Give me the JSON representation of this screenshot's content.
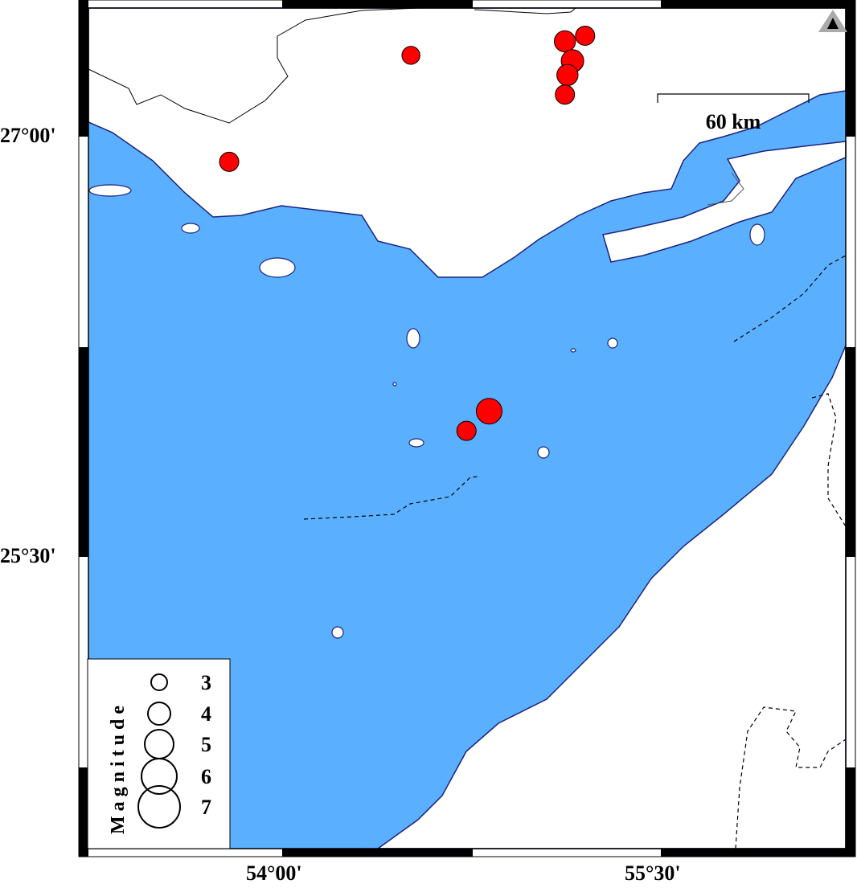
{
  "map": {
    "colors": {
      "sea": "#5ab0ff",
      "land": "#ffffff",
      "coast": "#1a237e",
      "event": "#ff0000"
    },
    "extent": {
      "lon": [
        53.2,
        56.25
      ],
      "lat": [
        24.4,
        27.48
      ]
    },
    "x_ticks": [
      {
        "lon": 54.0,
        "label": "54°00'"
      },
      {
        "lon": 55.5,
        "label": "55°30'"
      }
    ],
    "y_ticks": [
      {
        "lat": 27.0,
        "label": "27°00'"
      },
      {
        "lat": 25.5,
        "label": "25°30'"
      }
    ],
    "scale_bar": {
      "label": "60 km"
    },
    "north_marker_icon": "triangle-icon",
    "legend": {
      "title": "Magnitude",
      "entries": [
        3,
        4,
        5,
        6,
        7
      ],
      "labels": [
        "3",
        "4",
        "5",
        "6",
        "7"
      ]
    },
    "events": [
      {
        "lon": 54.51,
        "lat": 27.29,
        "mag": 3.3
      },
      {
        "lon": 53.79,
        "lat": 26.91,
        "mag": 3.5
      },
      {
        "lon": 55.12,
        "lat": 27.34,
        "mag": 3.8
      },
      {
        "lon": 55.2,
        "lat": 27.36,
        "mag": 3.5
      },
      {
        "lon": 55.15,
        "lat": 27.27,
        "mag": 4.0
      },
      {
        "lon": 55.13,
        "lat": 27.22,
        "mag": 3.8
      },
      {
        "lon": 55.12,
        "lat": 27.15,
        "mag": 3.5
      },
      {
        "lon": 54.82,
        "lat": 26.02,
        "mag": 4.5
      },
      {
        "lon": 54.73,
        "lat": 25.95,
        "mag": 3.5
      }
    ]
  }
}
